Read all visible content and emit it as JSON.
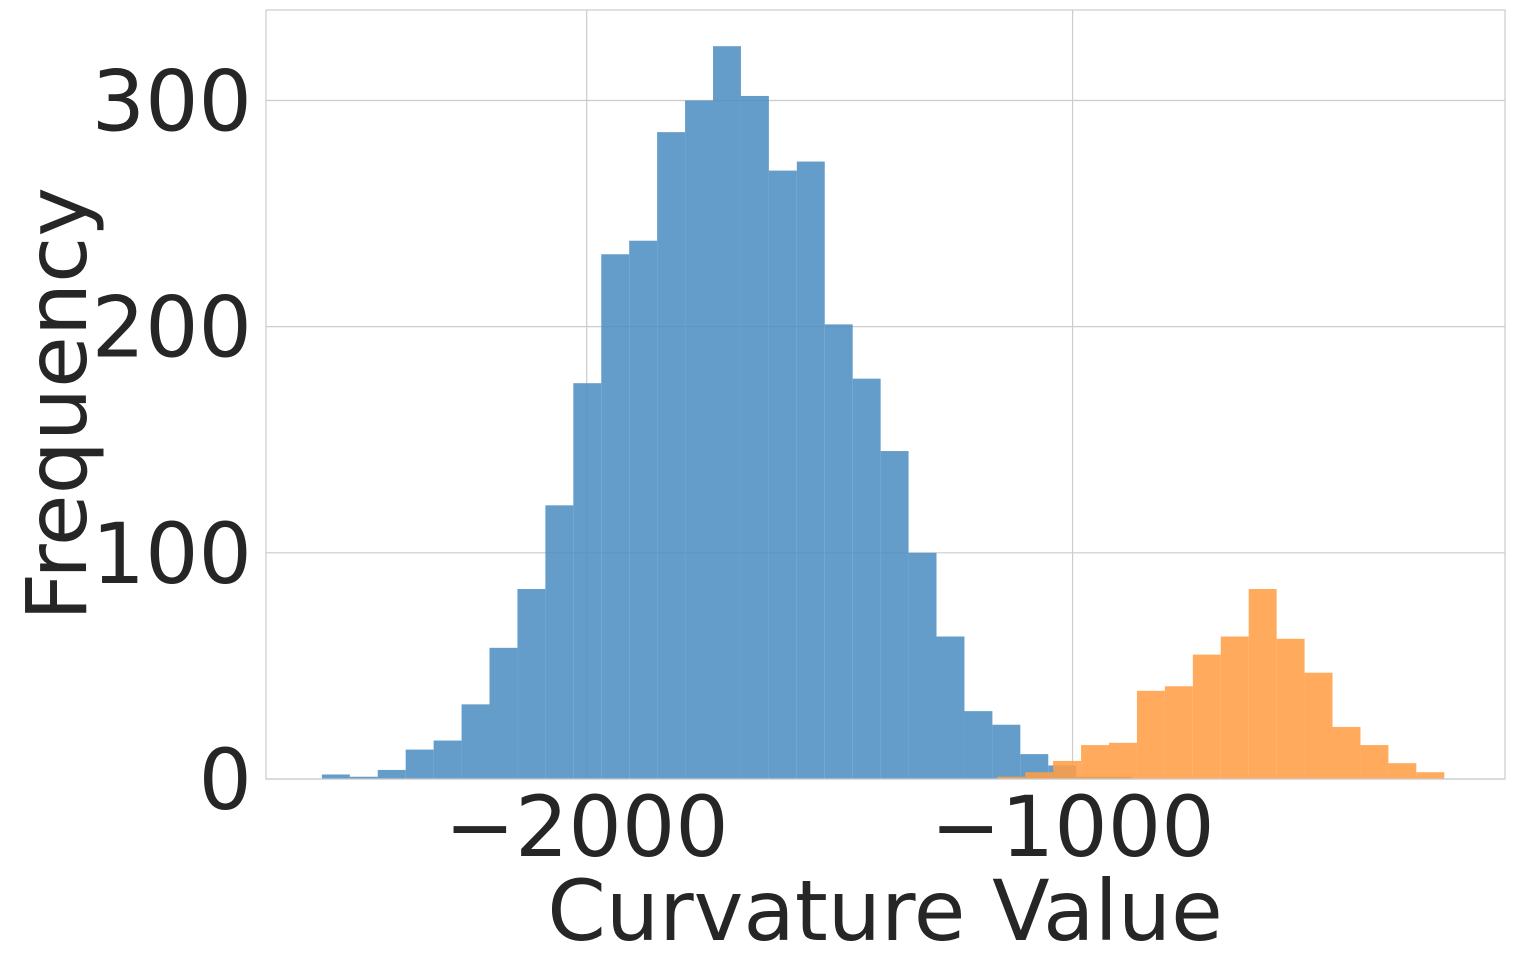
{
  "colors": {
    "series_1": "#4f8fc2",
    "series_2": "#ff9e45",
    "grid": "#cccccc",
    "text": "#262626"
  },
  "chart_data": {
    "type": "histogram",
    "title": "",
    "xlabel": "Curvature Value",
    "ylabel": "Frequency",
    "xlim": [
      -2660,
      -110
    ],
    "ylim": [
      0,
      340
    ],
    "grid": true,
    "legend": "none",
    "x_ticks": [
      {
        "value": -2000,
        "label": "−2000"
      },
      {
        "value": -1000,
        "label": "−1000"
      }
    ],
    "y_ticks": [
      {
        "value": 0,
        "label": "0"
      },
      {
        "value": 100,
        "label": "100"
      },
      {
        "value": 200,
        "label": "200"
      },
      {
        "value": 300,
        "label": "300"
      }
    ],
    "series": [
      {
        "color": "#4f8fc2",
        "opacity": 0.88,
        "bin_start": -2545,
        "bin_width": 57.5,
        "counts": [
          2,
          1,
          4,
          13,
          17,
          33,
          58,
          84,
          121,
          175,
          232,
          238,
          286,
          300,
          324,
          302,
          269,
          273,
          201,
          177,
          145,
          100,
          63,
          30,
          24,
          11,
          6,
          1,
          1
        ]
      },
      {
        "color": "#ff9e45",
        "opacity": 0.88,
        "bin_start": -1155,
        "bin_width": 57.5,
        "counts": [
          1,
          3,
          8,
          15,
          16,
          39,
          41,
          55,
          63,
          84,
          62,
          47,
          23,
          15,
          7,
          3
        ]
      }
    ]
  }
}
